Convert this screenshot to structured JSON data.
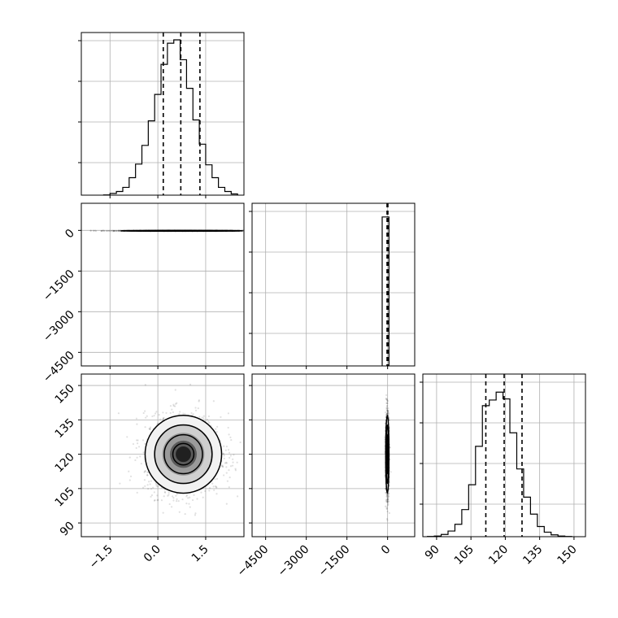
{
  "chart_data": {
    "type": "corner",
    "grid": true,
    "parameters": [
      {
        "axis_ticks": [
          "−1.5",
          "0.0",
          "1.5"
        ],
        "range": [
          -2.4,
          2.7
        ]
      },
      {
        "axis_ticks": [
          "−4500",
          "−3000",
          "−1500",
          "0"
        ],
        "range": [
          -5000,
          1000
        ]
      },
      {
        "axis_ticks": [
          "90",
          "105",
          "120",
          "135",
          "150"
        ],
        "range": [
          84,
          155
        ]
      }
    ],
    "histograms": [
      {
        "param": 0,
        "bin_edges": [
          -1.7,
          -1.5,
          -1.3,
          -1.1,
          -0.9,
          -0.7,
          -0.5,
          -0.3,
          -0.1,
          0.1,
          0.3,
          0.5,
          0.7,
          0.9,
          1.1,
          1.3,
          1.5,
          1.7,
          1.9,
          2.1,
          2.3,
          2.5
        ],
        "counts": [
          1,
          7,
          15,
          32,
          72,
          128,
          205,
          306,
          415,
          539,
          626,
          640,
          558,
          440,
          310,
          210,
          125,
          72,
          32,
          15,
          5
        ],
        "quantiles": [
          0.17,
          0.72,
          1.32
        ],
        "ylim": [
          0,
          670
        ]
      },
      {
        "param": 1,
        "bin_edges": [
          -200,
          0,
          50
        ],
        "counts": [
          980,
          980
        ],
        "quantiles": [
          -20,
          10
        ],
        "ylim": [
          0,
          1070
        ]
      },
      {
        "param": 2,
        "bin_edges": [
          86,
          89,
          92,
          95,
          98,
          101,
          104,
          107,
          110,
          113,
          116,
          119,
          122,
          125,
          128,
          131,
          134,
          137,
          140,
          143,
          146,
          149
        ],
        "counts": [
          1,
          3,
          10,
          25,
          55,
          120,
          230,
          400,
          580,
          605,
          640,
          610,
          460,
          300,
          175,
          100,
          45,
          20,
          8,
          3,
          1
        ],
        "quantiles": [
          111.5,
          119.5,
          127.3
        ],
        "ylim": [
          0,
          720
        ]
      }
    ],
    "scatter_panels": [
      {
        "x_param": 0,
        "y_param": 1,
        "center": [
          0.75,
          -15
        ],
        "spread": [
          0.95,
          6
        ]
      },
      {
        "x_param": 0,
        "y_param": 2,
        "center": [
          0.8,
          120
        ],
        "spread": [
          0.6,
          8.5
        ]
      },
      {
        "x_param": 1,
        "y_param": 2,
        "center": [
          -10,
          120
        ],
        "spread": [
          30,
          8.5
        ]
      }
    ]
  }
}
